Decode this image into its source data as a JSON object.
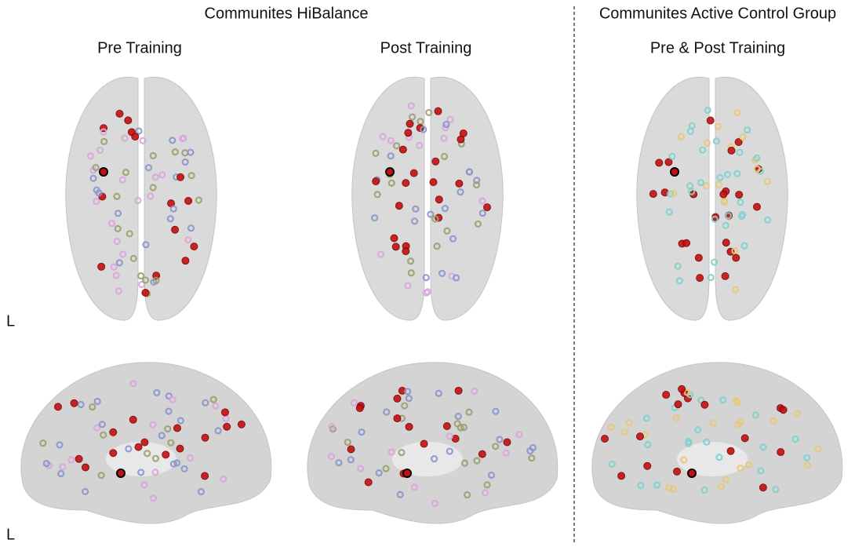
{
  "header": {
    "left_title": "Communites HiBalance",
    "right_title": "Communites Active Control Group"
  },
  "panels": [
    {
      "label": "Pre Training"
    },
    {
      "label": "Post Training"
    },
    {
      "label": "Pre & Post Training"
    }
  ],
  "orientation_labels": [
    "L",
    "L"
  ]
}
